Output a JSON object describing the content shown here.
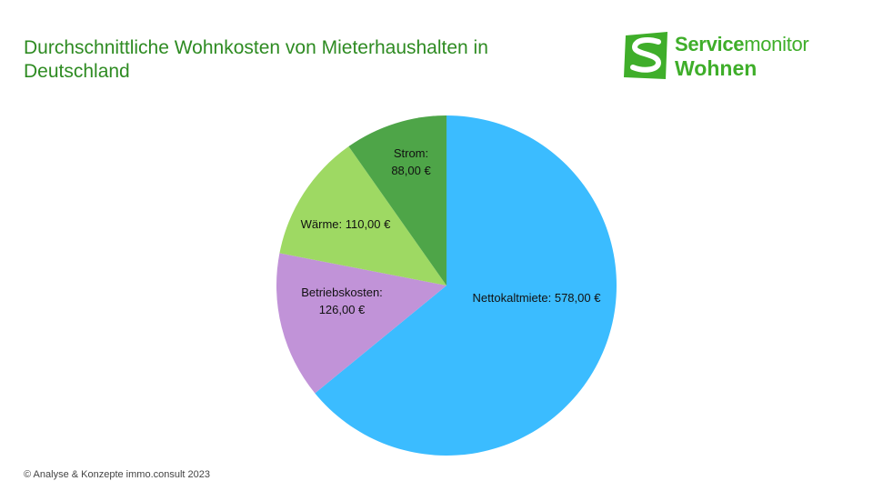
{
  "title": "Durchschnittliche Wohnkosten von Mieterhaushalten in Deutschland",
  "logo": {
    "line1_bold": "Service",
    "line1_regular": "monitor",
    "line2": "Wohnen",
    "color": "#3fae2a"
  },
  "footer": "© Analyse & Konzepte immo.consult 2023",
  "chart_data": {
    "type": "pie",
    "title": "Durchschnittliche Wohnkosten von Mieterhaushalten in Deutschland",
    "slices": [
      {
        "label": "Nettokaltmiete:",
        "value": 578,
        "value_label": "578,00 €",
        "color": "#3bbcff"
      },
      {
        "label": "Betriebskosten:",
        "value": 126,
        "value_label": "126,00 €",
        "color": "#c193d8"
      },
      {
        "label": "Wärme:",
        "value": 110,
        "value_label": "110,00 €",
        "color": "#9ed963"
      },
      {
        "label": "Strom:",
        "value": 88,
        "value_label": "88,00 €",
        "color": "#4ea548"
      }
    ]
  }
}
